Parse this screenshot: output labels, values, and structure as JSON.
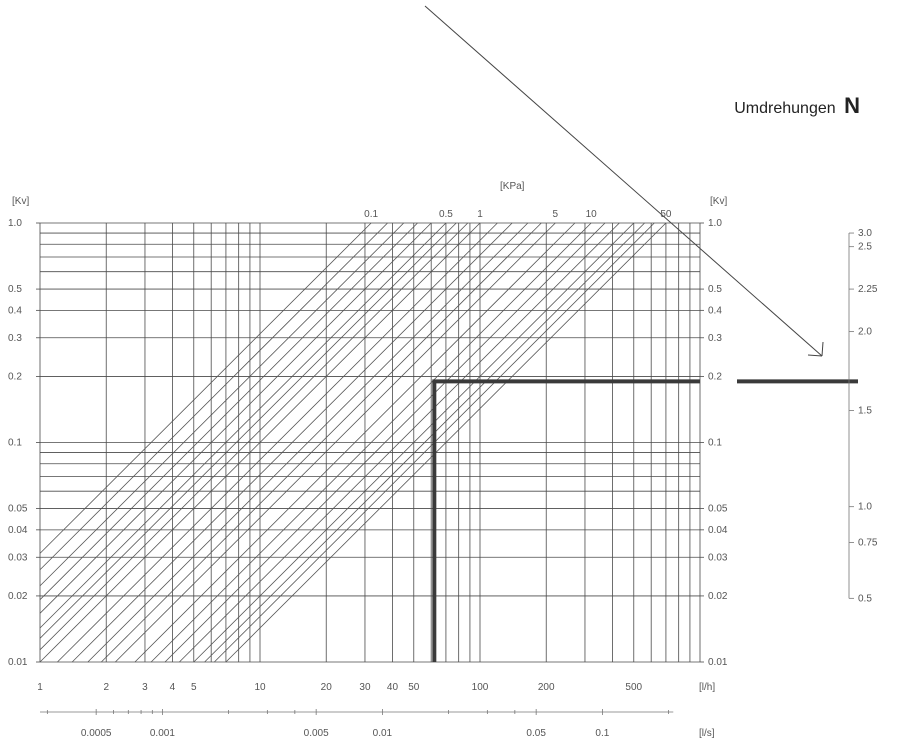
{
  "chart_data": {
    "type": "line",
    "title_prefix": "Umdrehungen",
    "title_symbol": "N",
    "y_unit_left": "[Kv]",
    "y_unit_right": "[Kv]",
    "x_unit": "[l/h]",
    "x2_unit": "[l/s]",
    "pressure_unit": "[KPa]",
    "x_scale": "log",
    "y_scale": "log",
    "xlim": [
      1,
      1000
    ],
    "ylim": [
      0.01,
      1.0
    ],
    "x_gridlines": [
      1,
      2,
      3,
      4,
      5,
      6,
      7,
      8,
      9,
      10,
      20,
      30,
      40,
      50,
      60,
      70,
      80,
      90,
      100,
      200,
      300,
      400,
      500,
      600,
      700,
      800,
      900,
      1000
    ],
    "y_gridlines": [
      0.01,
      0.02,
      0.03,
      0.04,
      0.05,
      0.06,
      0.07,
      0.08,
      0.09,
      0.1,
      0.2,
      0.3,
      0.4,
      0.5,
      0.6,
      0.7,
      0.8,
      0.9,
      1.0
    ],
    "x_tick_labels": [
      {
        "value": 1,
        "label": "1"
      },
      {
        "value": 2,
        "label": "2"
      },
      {
        "value": 3,
        "label": "3"
      },
      {
        "value": 4,
        "label": "4"
      },
      {
        "value": 5,
        "label": "5"
      },
      {
        "value": 10,
        "label": "10"
      },
      {
        "value": 20,
        "label": "20"
      },
      {
        "value": 30,
        "label": "30"
      },
      {
        "value": 40,
        "label": "40"
      },
      {
        "value": 50,
        "label": "50"
      },
      {
        "value": 100,
        "label": "100"
      },
      {
        "value": 200,
        "label": "200"
      },
      {
        "value": 500,
        "label": "500"
      }
    ],
    "x2_tick_labels": [
      {
        "value": 0.0005,
        "label": "0.0005"
      },
      {
        "value": 0.001,
        "label": "0.001"
      },
      {
        "value": 0.005,
        "label": "0.005"
      },
      {
        "value": 0.01,
        "label": "0.01"
      },
      {
        "value": 0.05,
        "label": "0.05"
      },
      {
        "value": 0.1,
        "label": "0.1"
      }
    ],
    "x2_minor_ticks": [
      0.0003,
      0.0006,
      0.0007,
      0.0008,
      0.0009,
      0.002,
      0.003,
      0.004,
      0.02,
      0.03,
      0.04,
      0.2
    ],
    "y_tick_labels": [
      {
        "value": 1.0,
        "label": "1.0"
      },
      {
        "value": 0.5,
        "label": "0.5"
      },
      {
        "value": 0.4,
        "label": "0.4"
      },
      {
        "value": 0.3,
        "label": "0.3"
      },
      {
        "value": 0.2,
        "label": "0.2"
      },
      {
        "value": 0.1,
        "label": "0.1"
      },
      {
        "value": 0.05,
        "label": "0.05"
      },
      {
        "value": 0.04,
        "label": "0.04"
      },
      {
        "value": 0.03,
        "label": "0.03"
      },
      {
        "value": 0.02,
        "label": "0.02"
      },
      {
        "value": 0.01,
        "label": "0.01"
      }
    ],
    "pressure_tick_labels": [
      {
        "flow": 32,
        "label": "0.1"
      },
      {
        "flow": 70,
        "label": "0.5"
      },
      {
        "flow": 100,
        "label": "1"
      },
      {
        "flow": 220,
        "label": "5"
      },
      {
        "flow": 320,
        "label": "10"
      },
      {
        "flow": 700,
        "label": "50"
      }
    ],
    "pressure_lines_flow_at_kv_1": [
      32,
      38,
      45,
      52,
      60,
      70,
      78,
      88,
      100,
      120,
      140,
      165,
      190,
      220,
      270,
      320,
      370,
      430,
      500,
      560,
      620,
      700
    ],
    "selection": {
      "flow": 62,
      "kv": 0.19
    },
    "revolution_scale": {
      "labels": [
        {
          "label": "3.0",
          "kv": 0.9
        },
        {
          "label": "2.5",
          "kv": 0.78
        },
        {
          "label": "2.25",
          "kv": 0.5
        },
        {
          "label": "2.0",
          "kv": 0.32
        },
        {
          "label": "1.5",
          "kv": 0.14
        },
        {
          "label": "1.0",
          "kv": 0.051
        },
        {
          "label": "0.75",
          "kv": 0.035
        },
        {
          "label": "0.5",
          "kv": 0.0195
        }
      ],
      "top_kv": 0.9,
      "bottom_kv": 0.0195
    },
    "colors": {
      "grid": "#4a4a4a",
      "diagonal": "#555555",
      "selection": "#3a3a3a",
      "text": "#555555",
      "title": "#222222"
    }
  }
}
